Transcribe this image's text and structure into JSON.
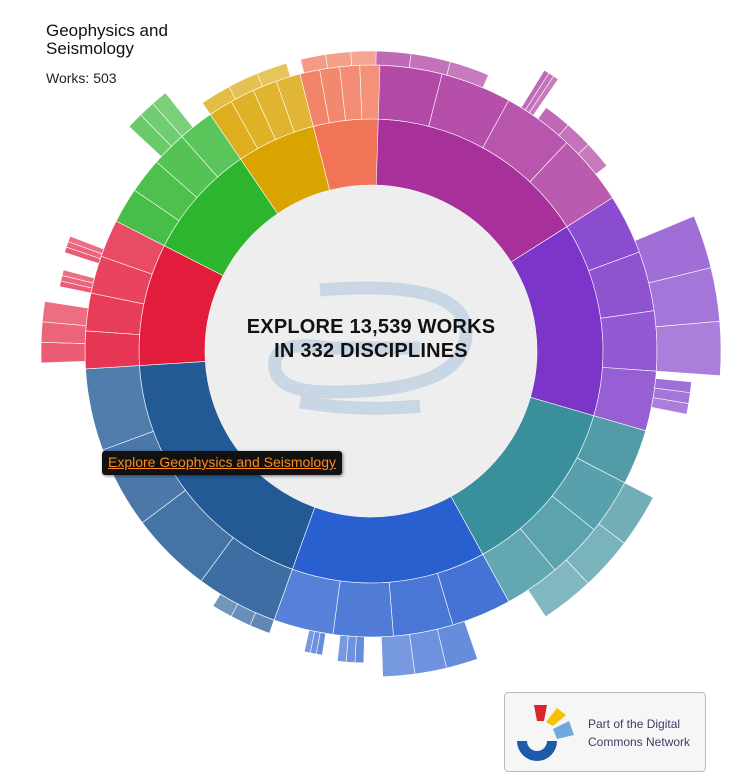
{
  "hover_info": {
    "discipline_name": "Geophysics and Seismology",
    "works_label": "Works: 503"
  },
  "center": {
    "line1": "EXPLORE 13,539 WORKS",
    "line2": "IN 332 DISCIPLINES"
  },
  "tooltip_link": "Explore Geophysics and Seismology",
  "network_badge": {
    "line1": "Part of the Digital",
    "line2": "Commons Network"
  },
  "colors": {
    "magenta": "#a8309a",
    "purple": "#7b35c8",
    "teal": "#3a8f9c",
    "blue": "#2a5fcf",
    "darkblue": "#235a96",
    "red": "#e31b3c",
    "green": "#2eb52e",
    "gold": "#d9a300",
    "salmon": "#f07455",
    "center_fill": "#eeeeef",
    "link_orange": "#ff8c1a"
  },
  "chart_data": {
    "type": "sunburst",
    "total_works": 13539,
    "total_disciplines": 332,
    "groups": [
      {
        "name": "magenta",
        "share": 0.16
      },
      {
        "name": "purple",
        "share": 0.135
      },
      {
        "name": "teal",
        "share": 0.125
      },
      {
        "name": "blue",
        "share": 0.135
      },
      {
        "name": "darkblue",
        "share": 0.185
      },
      {
        "name": "red",
        "share": 0.085
      },
      {
        "name": "green",
        "share": 0.08
      },
      {
        "name": "gold",
        "share": 0.055
      },
      {
        "name": "salmon",
        "share": 0.045
      }
    ],
    "highlighted": {
      "name": "Geophysics and Seismology",
      "works": 503
    }
  }
}
